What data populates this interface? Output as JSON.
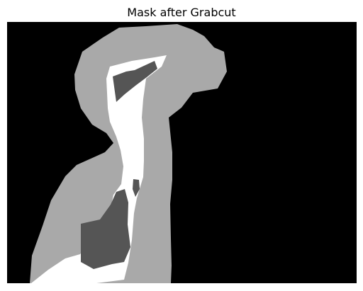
{
  "figure": {
    "title": "Mask after Grabcut"
  },
  "mask_image": {
    "colors": {
      "background": "#000000",
      "probable_foreground": "#a9a9a9",
      "foreground": "#ffffff",
      "probable_background": "#555555"
    }
  }
}
